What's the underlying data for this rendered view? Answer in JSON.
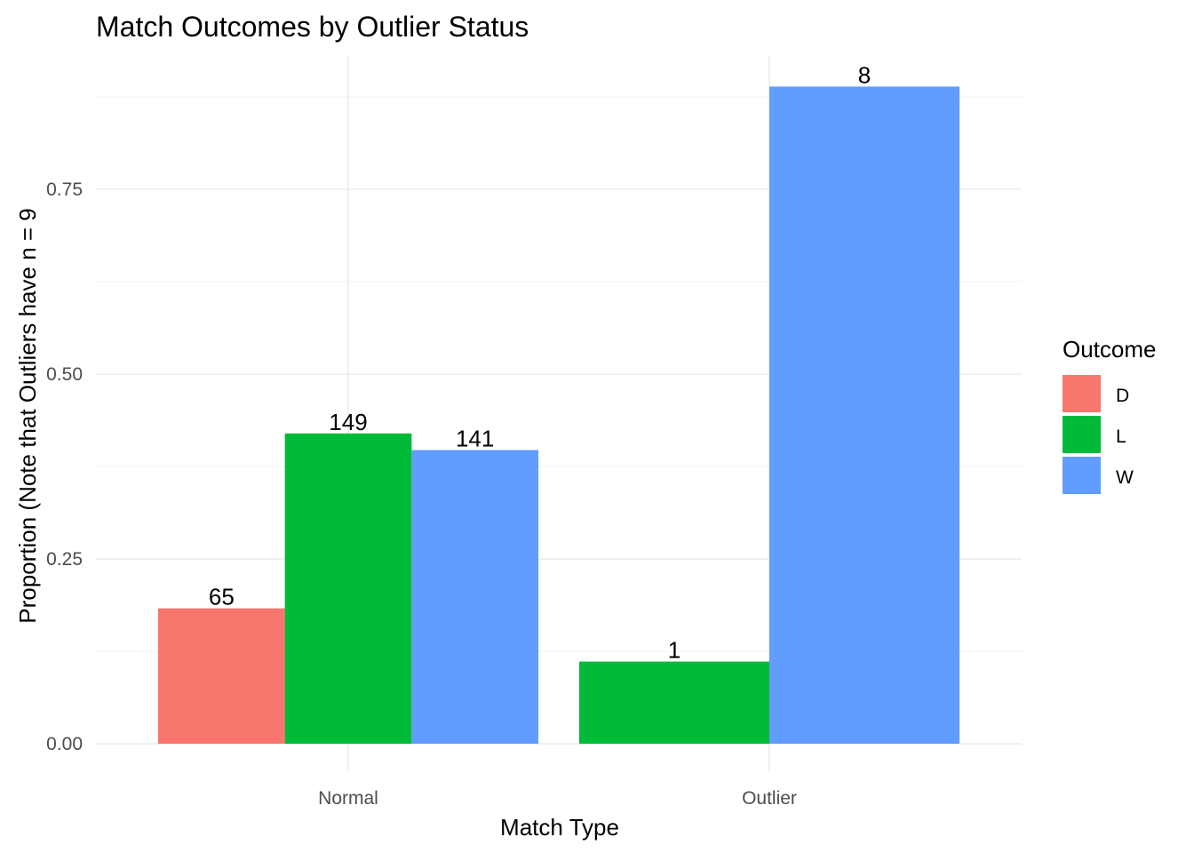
{
  "chart_data": {
    "type": "bar",
    "title": "Match Outcomes by Outlier Status",
    "xlabel": "Match Type",
    "ylabel": "Proportion (Note that Outliers have n = 9",
    "categories": [
      "Normal",
      "Outlier"
    ],
    "ylim": [
      0,
      0.92
    ],
    "yticks": [
      0.0,
      0.25,
      0.5,
      0.75
    ],
    "ytick_labels": [
      "0.00",
      "0.25",
      "0.50",
      "0.75"
    ],
    "grid": true,
    "legend": {
      "title": "Outcome",
      "position": "right",
      "entries": [
        "D",
        "L",
        "W"
      ]
    },
    "series": [
      {
        "name": "D",
        "color": "#F8766D",
        "values": [
          0.1831,
          null
        ],
        "labels": [
          "65",
          null
        ]
      },
      {
        "name": "L",
        "color": "#00BA38",
        "values": [
          0.4197,
          0.1111
        ],
        "labels": [
          "149",
          "1"
        ]
      },
      {
        "name": "W",
        "color": "#619CFF",
        "values": [
          0.3972,
          0.8889
        ],
        "labels": [
          "141",
          "8"
        ]
      }
    ]
  }
}
